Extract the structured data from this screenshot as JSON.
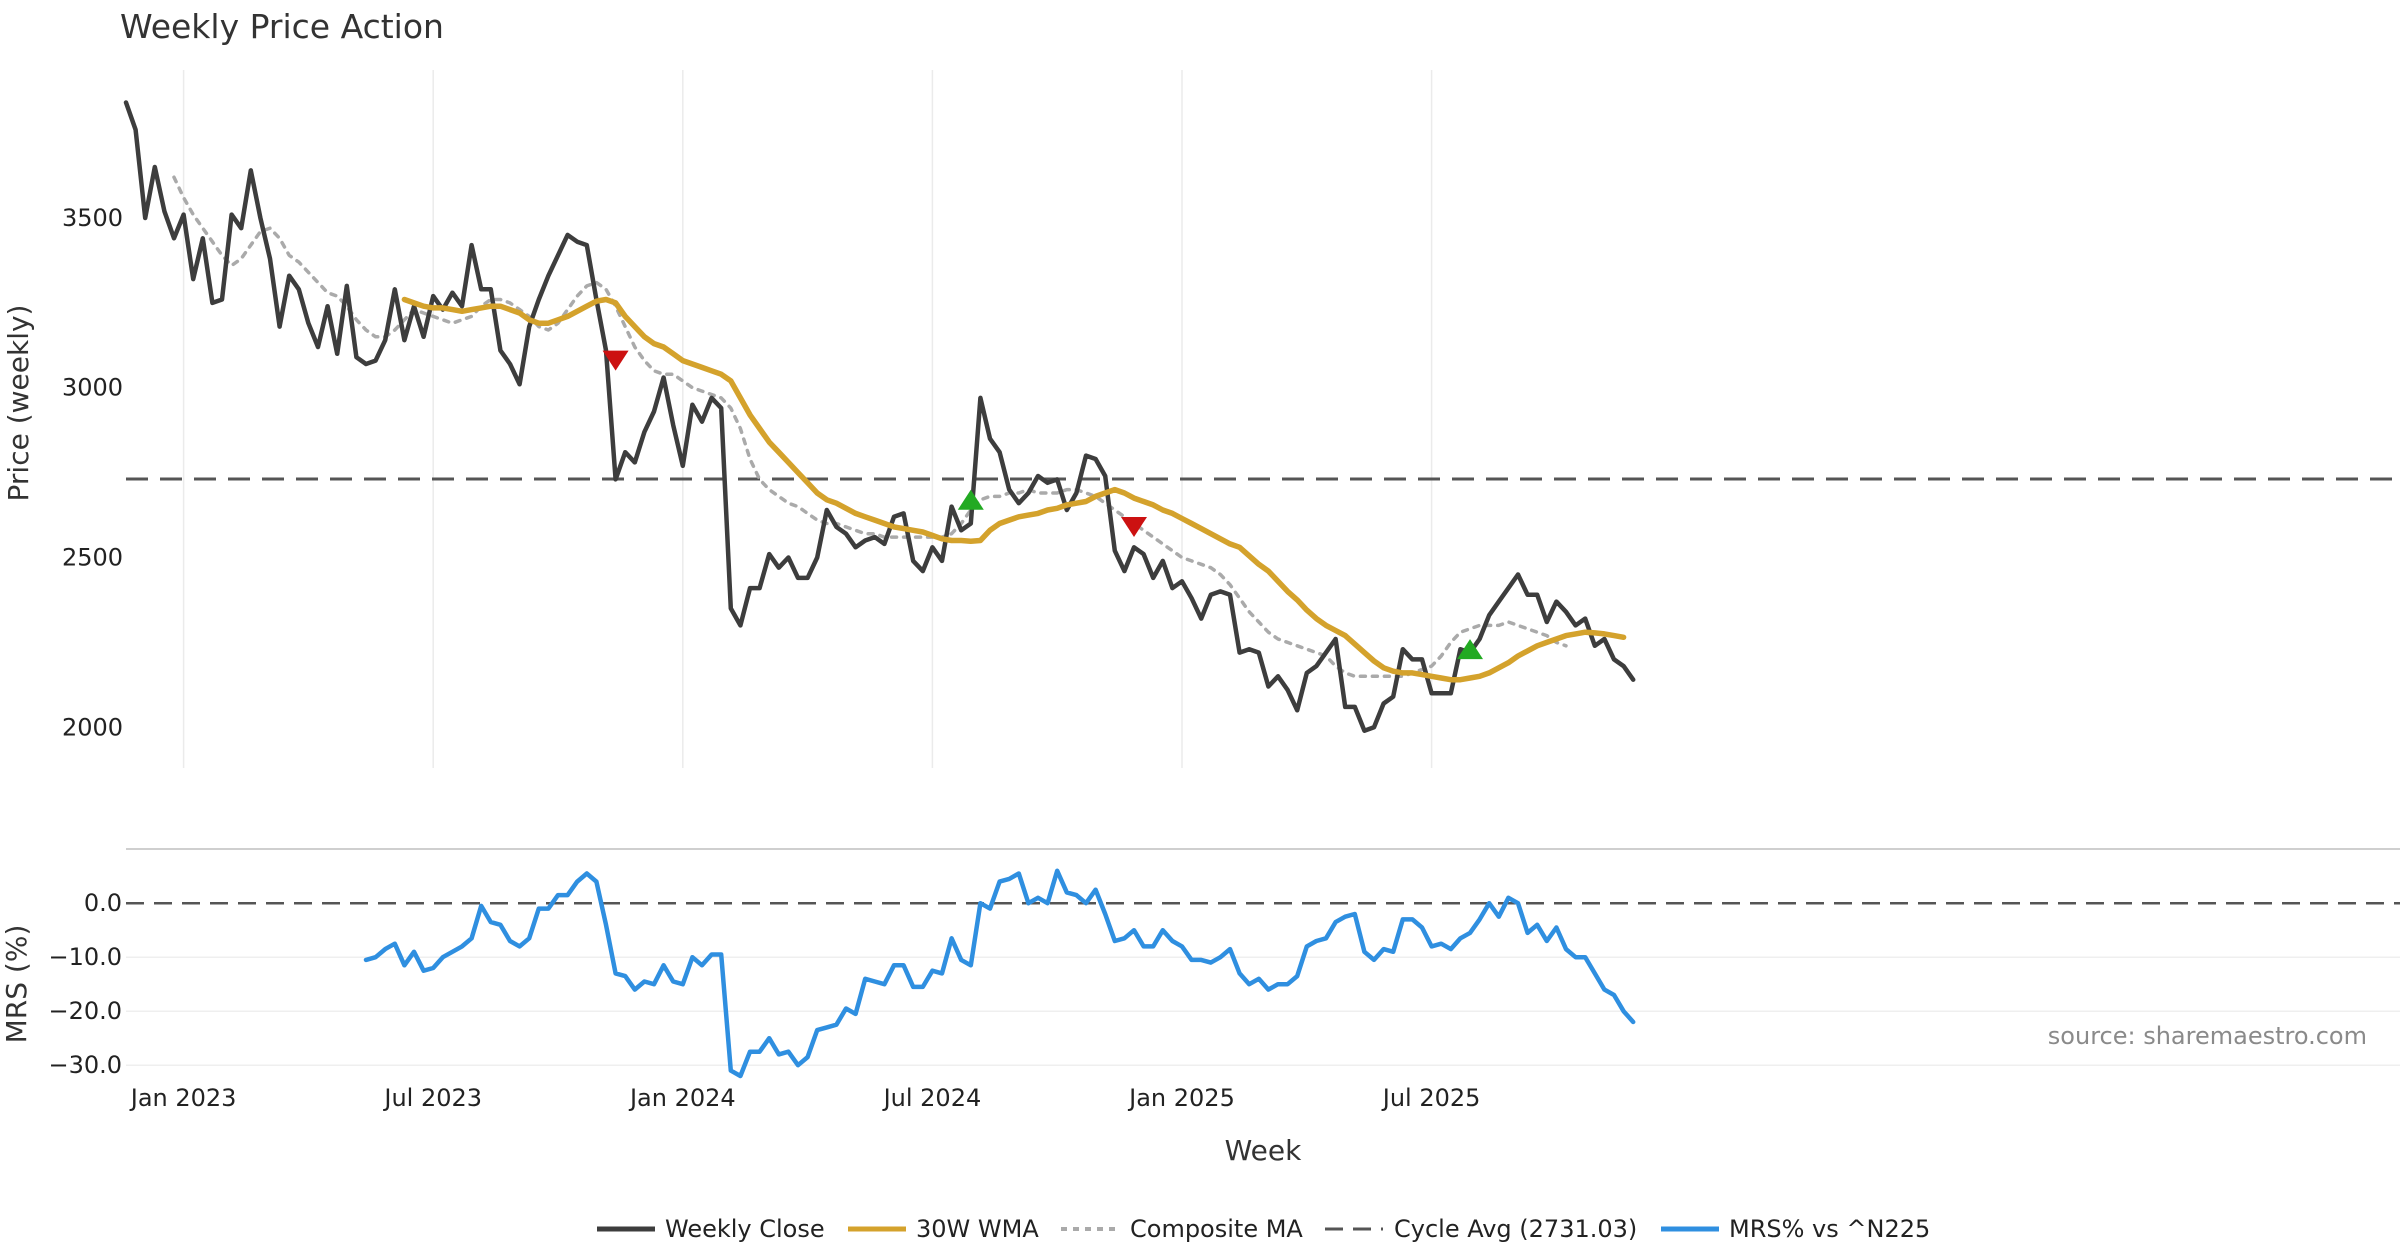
{
  "chart_data": {
    "type": "line",
    "title": "Weekly Price Action",
    "xlabel": "Week",
    "x_start": "2022-11-21",
    "x_tick_labels": [
      "Jan 2023",
      "Jul 2023",
      "Jan 2024",
      "Jul 2024",
      "Jan 2025",
      "Jul 2025"
    ],
    "x_tick_weeks": [
      6,
      32,
      58,
      84,
      110,
      136
    ],
    "price_panel": {
      "ylabel": "Price (weekly)",
      "ylim": [
        1880,
        3980
      ],
      "y_ticks": [
        2000,
        2500,
        3000,
        3500
      ],
      "y_tick_labels": [
        "2000",
        "2500",
        "3000",
        "3500"
      ],
      "series": [
        {
          "name": "Weekly Close",
          "color": "#3d3d3d",
          "start_week": 0,
          "values": [
            3840,
            3760,
            3500,
            3650,
            3520,
            3440,
            3510,
            3320,
            3440,
            3250,
            3260,
            3510,
            3470,
            3640,
            3500,
            3380,
            3180,
            3330,
            3290,
            3190,
            3120,
            3240,
            3100,
            3300,
            3090,
            3070,
            3080,
            3140,
            3290,
            3140,
            3240,
            3150,
            3270,
            3230,
            3280,
            3240,
            3420,
            3290,
            3290,
            3110,
            3070,
            3010,
            3180,
            3260,
            3330,
            3390,
            3450,
            3430,
            3420,
            3260,
            3110,
            2730,
            2810,
            2780,
            2870,
            2930,
            3030,
            2890,
            2770,
            2950,
            2900,
            2970,
            2940,
            2350,
            2300,
            2410,
            2410,
            2510,
            2470,
            2500,
            2440,
            2440,
            2500,
            2640,
            2590,
            2570,
            2530,
            2550,
            2560,
            2540,
            2620,
            2630,
            2490,
            2460,
            2530,
            2490,
            2650,
            2580,
            2600,
            2970,
            2850,
            2810,
            2700,
            2660,
            2690,
            2740,
            2720,
            2730,
            2640,
            2690,
            2800,
            2790,
            2740,
            2520,
            2460,
            2530,
            2510,
            2440,
            2490,
            2410,
            2430,
            2380,
            2320,
            2390,
            2400,
            2390,
            2220,
            2230,
            2220,
            2120,
            2150,
            2110,
            2050,
            2160,
            2180,
            2220,
            2260,
            2060,
            2060,
            1990,
            2000,
            2070,
            2090,
            2230,
            2200,
            2200,
            2100,
            2100,
            2100,
            2230,
            2220,
            2260,
            2330,
            2370,
            2410,
            2450,
            2390,
            2390,
            2310,
            2370,
            2340,
            2300,
            2320,
            2240,
            2260,
            2200,
            2180,
            2140
          ]
        },
        {
          "name": "30W WMA",
          "color": "#d4a22c",
          "start_week": 29,
          "values": [
            3260,
            3250,
            3240,
            3235,
            3235,
            3230,
            3225,
            3230,
            3235,
            3240,
            3240,
            3230,
            3220,
            3200,
            3190,
            3190,
            3200,
            3210,
            3225,
            3240,
            3255,
            3260,
            3250,
            3210,
            3180,
            3150,
            3130,
            3120,
            3100,
            3080,
            3070,
            3060,
            3050,
            3040,
            3020,
            2970,
            2920,
            2880,
            2840,
            2810,
            2780,
            2750,
            2720,
            2690,
            2670,
            2660,
            2645,
            2630,
            2620,
            2610,
            2600,
            2590,
            2585,
            2580,
            2575,
            2565,
            2555,
            2550,
            2550,
            2548,
            2550,
            2580,
            2600,
            2610,
            2620,
            2625,
            2630,
            2640,
            2645,
            2655,
            2660,
            2665,
            2680,
            2690,
            2700,
            2690,
            2675,
            2665,
            2655,
            2640,
            2630,
            2615,
            2600,
            2585,
            2570,
            2555,
            2540,
            2530,
            2505,
            2480,
            2460,
            2430,
            2400,
            2375,
            2345,
            2320,
            2300,
            2285,
            2270,
            2245,
            2220,
            2195,
            2175,
            2165,
            2160,
            2160,
            2155,
            2150,
            2145,
            2140,
            2140,
            2145,
            2150,
            2160,
            2175,
            2190,
            2210,
            2225,
            2240,
            2250,
            2260,
            2270,
            2275,
            2280,
            2278,
            2275,
            2270,
            2265
          ]
        },
        {
          "name": "Composite MA",
          "color": "#aaaaaa",
          "start_week": 5,
          "values": [
            3620,
            3560,
            3510,
            3470,
            3430,
            3390,
            3360,
            3380,
            3420,
            3460,
            3470,
            3440,
            3390,
            3370,
            3340,
            3310,
            3280,
            3270,
            3240,
            3200,
            3170,
            3150,
            3150,
            3170,
            3200,
            3230,
            3220,
            3210,
            3200,
            3190,
            3200,
            3210,
            3240,
            3260,
            3260,
            3250,
            3230,
            3210,
            3180,
            3170,
            3190,
            3230,
            3270,
            3300,
            3310,
            3290,
            3240,
            3180,
            3120,
            3080,
            3050,
            3040,
            3040,
            3020,
            3000,
            2990,
            2980,
            2970,
            2940,
            2880,
            2790,
            2730,
            2700,
            2680,
            2660,
            2650,
            2630,
            2610,
            2600,
            2600,
            2590,
            2580,
            2570,
            2570,
            2560,
            2560,
            2560,
            2560,
            2560,
            2560,
            2560,
            2570,
            2600,
            2640,
            2670,
            2680,
            2680,
            2690,
            2690,
            2700,
            2690,
            2690,
            2690,
            2700,
            2700,
            2690,
            2680,
            2660,
            2640,
            2620,
            2600,
            2580,
            2560,
            2540,
            2520,
            2500,
            2490,
            2480,
            2470,
            2450,
            2420,
            2380,
            2340,
            2310,
            2280,
            2260,
            2250,
            2240,
            2230,
            2220,
            2210,
            2180,
            2160,
            2150,
            2150,
            2150,
            2150,
            2150,
            2150,
            2160,
            2170,
            2180,
            2210,
            2250,
            2280,
            2290,
            2300,
            2300,
            2300,
            2310,
            2300,
            2290,
            2280,
            2270,
            2250,
            2240
          ]
        },
        {
          "name": "Cycle Avg (2731.03)",
          "color": "#555555",
          "constant": 2731.03
        }
      ],
      "markers": [
        {
          "type": "sell",
          "week": 51,
          "value": 3080,
          "color": "#cc1111"
        },
        {
          "type": "buy",
          "week": 88,
          "value": 2670,
          "color": "#22aa22"
        },
        {
          "type": "sell",
          "week": 105,
          "value": 2590,
          "color": "#cc1111"
        },
        {
          "type": "buy",
          "week": 140,
          "value": 2230,
          "color": "#22aa22"
        }
      ]
    },
    "mrs_panel": {
      "ylabel": "MRS (%)",
      "ylim": [
        -32,
        8
      ],
      "y_ticks": [
        0,
        -10,
        -20,
        -30
      ],
      "y_tick_labels": [
        "0.0",
        "−10.0",
        "−20.0",
        "−30.0"
      ],
      "zero_line": 0,
      "series": [
        {
          "name": "MRS% vs ^N225",
          "color": "#2f8fe0",
          "start_week": 25,
          "values": [
            -10.5,
            -10,
            -8.5,
            -7.5,
            -11.5,
            -9,
            -12.5,
            -12,
            -10,
            -9,
            -8,
            -6.5,
            -0.5,
            -3.5,
            -4,
            -7,
            -8,
            -6.5,
            -1,
            -1,
            1.5,
            1.5,
            4,
            5.5,
            4,
            -4,
            -13,
            -13.5,
            -16,
            -14.5,
            -15,
            -11.5,
            -14.5,
            -15,
            -10,
            -11.5,
            -9.5,
            -9.5,
            -31,
            -32,
            -27.5,
            -27.5,
            -25,
            -28,
            -27.5,
            -30,
            -28.5,
            -23.5,
            -23,
            -22.5,
            -19.5,
            -20.5,
            -14,
            -14.5,
            -15,
            -11.5,
            -11.5,
            -15.5,
            -15.5,
            -12.5,
            -13,
            -6.5,
            -10.5,
            -11.5,
            0,
            -1,
            4,
            4.5,
            5.5,
            0,
            1,
            0,
            6,
            2,
            1.5,
            0,
            2.5,
            -2,
            -7,
            -6.5,
            -5,
            -8,
            -8,
            -5,
            -7,
            -8,
            -10.5,
            -10.5,
            -11,
            -10,
            -8.5,
            -13,
            -15,
            -14,
            -16,
            -15,
            -15,
            -13.5,
            -8,
            -7,
            -6.5,
            -3.5,
            -2.5,
            -2,
            -9,
            -10.5,
            -8.5,
            -9,
            -3,
            -3,
            -4.5,
            -8,
            -7.5,
            -8.5,
            -6.5,
            -5.5,
            -3,
            0,
            -2.5,
            1,
            0,
            -5.5,
            -4,
            -7,
            -4.5,
            -8.5,
            -10,
            -10,
            -13,
            -16,
            -17,
            -20,
            -22
          ]
        }
      ]
    },
    "legend": [
      "Weekly Close",
      "30W WMA",
      "Composite MA",
      "Cycle Avg (2731.03)",
      "MRS% vs ^N225"
    ],
    "legend_position": "bottom-center",
    "annotation": "source: sharemaestro.com"
  }
}
